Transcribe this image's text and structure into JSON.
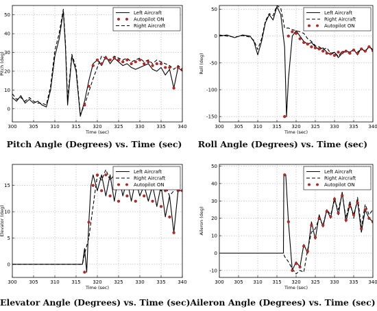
{
  "figure": {
    "captions": [
      "Pitch Angle (Degrees) vs. Time (sec)",
      "Roll Angle (Degrees) vs. Time (sec)",
      "Elevator Angle (Degrees) vs. Time (sec)",
      "Aileron Angle (Degrees) vs. Time (sec)"
    ],
    "colors": {
      "line": "#000000",
      "marker": "#cc2222",
      "marker_edge": "#7a1010",
      "grid": "#b0b0b0"
    }
  },
  "chart_data": [
    {
      "type": "line",
      "caption": "Pitch Angle (Degrees) vs. Time (sec)",
      "xlabel": "Time (sec)",
      "ylabel": "Pitch (deg)",
      "xlim": [
        300,
        340
      ],
      "ylim": [
        -7,
        55
      ],
      "xticks": [
        300,
        305,
        310,
        315,
        320,
        325,
        330,
        335,
        340
      ],
      "yticks": [
        0,
        10,
        20,
        30,
        40,
        50
      ],
      "grid": true,
      "legend_position": "top-right",
      "legend": [
        "Left Aircraft",
        "Autopilot ON",
        "Right Aircraft"
      ],
      "series": [
        {
          "name": "Left Aircraft",
          "style": "solid",
          "x": [
            300,
            301,
            302,
            303,
            304,
            305,
            306,
            307,
            308,
            309,
            310,
            311,
            312,
            312.5,
            313,
            314,
            315,
            316,
            317,
            318,
            319,
            320,
            321,
            322,
            323,
            324,
            325,
            326,
            327,
            328,
            329,
            330,
            331,
            332,
            333,
            334,
            335,
            336,
            337,
            338,
            339,
            340
          ],
          "y": [
            6,
            4,
            7,
            3,
            5,
            3,
            4,
            2,
            1,
            10,
            28,
            37,
            52,
            33,
            2,
            28,
            20,
            -4,
            4,
            15,
            24,
            26,
            23,
            28,
            24,
            27,
            25,
            23,
            24,
            22,
            21,
            22,
            23,
            24,
            21,
            20,
            22,
            18,
            21,
            11,
            22,
            20
          ]
        },
        {
          "name": "Right Aircraft",
          "style": "dashed",
          "x": [
            300,
            301,
            302,
            303,
            304,
            305,
            306,
            307,
            308,
            309,
            310,
            311,
            312,
            312.5,
            313,
            314,
            315,
            316,
            317,
            318,
            319,
            320,
            321,
            322,
            323,
            324,
            325,
            326,
            327,
            328,
            329,
            330,
            331,
            332,
            333,
            334,
            335,
            336,
            337,
            338,
            339,
            340
          ],
          "y": [
            8,
            5,
            6,
            4,
            6,
            4,
            3,
            3,
            2,
            12,
            31,
            40,
            53,
            35,
            5,
            29,
            22,
            -3,
            2,
            9,
            16,
            22,
            28,
            27,
            26,
            28,
            27,
            26,
            27,
            25,
            26,
            27,
            25,
            26,
            24,
            26,
            25,
            24,
            23,
            21,
            23,
            21
          ]
        },
        {
          "name": "Autopilot ON",
          "style": "markers",
          "x": [
            317,
            318,
            319,
            320,
            321,
            322,
            323,
            324,
            325,
            326,
            327,
            328,
            329,
            330,
            331,
            332,
            333,
            334,
            335,
            336,
            337,
            338,
            339,
            340
          ],
          "y": [
            2,
            12,
            23,
            26,
            24,
            27,
            26,
            27,
            26,
            25,
            26,
            24,
            25,
            26,
            24,
            25,
            23,
            24,
            24,
            22,
            22,
            11,
            22,
            21
          ]
        }
      ]
    },
    {
      "type": "line",
      "caption": "Roll Angle (Degrees) vs. Time (sec)",
      "xlabel": "Time (sec)",
      "ylabel": "Roll (deg)",
      "xlim": [
        300,
        340
      ],
      "ylim": [
        -160,
        57
      ],
      "xticks": [
        300,
        305,
        310,
        315,
        320,
        325,
        330,
        335,
        340
      ],
      "yticks": [
        -150,
        -100,
        -50,
        0,
        50
      ],
      "grid": true,
      "legend_position": "top-right",
      "legend": [
        "Left Aircraft",
        "Right Aircraft",
        "Autopilot ON"
      ],
      "series": [
        {
          "name": "Left Aircraft",
          "style": "solid",
          "x": [
            300,
            302,
            304,
            306,
            308,
            309,
            310,
            311,
            312,
            313,
            314,
            315,
            316,
            317,
            317.5,
            318,
            319,
            320,
            321,
            322,
            323,
            324,
            325,
            326,
            327,
            328,
            329,
            330,
            331,
            332,
            333,
            334,
            335,
            336,
            337,
            338,
            339,
            340
          ],
          "y": [
            0,
            2,
            -3,
            2,
            0,
            -10,
            -35,
            -10,
            25,
            40,
            30,
            55,
            40,
            -20,
            -150,
            -80,
            0,
            10,
            0,
            -10,
            -15,
            -12,
            -20,
            -25,
            -22,
            -30,
            -35,
            -30,
            -40,
            -32,
            -28,
            -30,
            -25,
            -35,
            -22,
            -30,
            -18,
            -28
          ]
        },
        {
          "name": "Right Aircraft",
          "style": "dashed",
          "x": [
            300,
            302,
            304,
            306,
            308,
            309,
            310,
            311,
            312,
            313,
            314,
            315,
            316,
            317,
            318,
            319,
            320,
            321,
            322,
            323,
            324,
            325,
            326,
            327,
            328,
            329,
            330,
            331,
            332,
            333,
            334,
            335,
            336,
            337,
            338,
            339,
            340
          ],
          "y": [
            2,
            0,
            -2,
            1,
            -2,
            -8,
            -25,
            -5,
            28,
            42,
            38,
            57,
            52,
            15,
            15,
            12,
            10,
            8,
            5,
            -5,
            -10,
            -18,
            -20,
            -25,
            -22,
            -32,
            -30,
            -38,
            -28,
            -30,
            -32,
            -26,
            -30,
            -24,
            -28,
            -20,
            -25
          ]
        },
        {
          "name": "Autopilot ON",
          "style": "markers",
          "x": [
            317,
            318,
            319,
            320,
            321,
            322,
            323,
            324,
            325,
            326,
            327,
            328,
            329,
            330,
            331,
            332,
            333,
            334,
            335,
            336,
            337,
            338,
            339,
            340
          ],
          "y": [
            -150,
            0,
            8,
            5,
            -5,
            -12,
            -15,
            -20,
            -22,
            -24,
            -28,
            -32,
            -33,
            -36,
            -30,
            -31,
            -28,
            -32,
            -26,
            -32,
            -24,
            -28,
            -20,
            -27
          ]
        }
      ]
    },
    {
      "type": "line",
      "caption": "Elevator Angle (Degrees) vs. Time (sec)",
      "xlabel": "Time (sec)",
      "ylabel": "Elevator (deg)",
      "xlim": [
        300,
        340
      ],
      "ylim": [
        -2.5,
        19
      ],
      "xticks": [
        300,
        305,
        310,
        315,
        320,
        325,
        330,
        335,
        340
      ],
      "yticks": [
        0,
        5,
        10,
        15
      ],
      "grid": true,
      "legend_position": "top-right",
      "legend": [
        "Left Aircraft",
        "Right Aircraft",
        "Autopilot ON"
      ],
      "series": [
        {
          "name": "Left Aircraft",
          "style": "solid",
          "x": [
            300,
            305,
            310,
            316.5,
            317,
            317.5,
            318,
            318.5,
            319,
            320,
            321,
            322,
            323,
            324,
            325,
            326,
            327,
            328,
            329,
            330,
            331,
            332,
            333,
            334,
            335,
            336,
            337,
            338,
            339,
            340
          ],
          "y": [
            0,
            0,
            0,
            0,
            3,
            -1.5,
            8,
            15,
            17,
            14,
            17,
            13,
            17,
            12,
            17,
            13,
            16,
            12,
            16,
            13,
            15,
            12,
            15,
            11,
            15,
            9,
            13,
            6,
            14,
            14
          ]
        },
        {
          "name": "Right Aircraft",
          "style": "dashed",
          "x": [
            300,
            305,
            310,
            316.5,
            317,
            318,
            319,
            320,
            321,
            322,
            323,
            324,
            325,
            326,
            327,
            328,
            329,
            330,
            331,
            332,
            333,
            334,
            335,
            336,
            337,
            338,
            339,
            340
          ],
          "y": [
            0,
            0,
            0,
            0,
            2,
            5,
            11,
            17,
            16,
            18,
            16,
            17,
            17,
            16,
            18,
            16,
            17,
            15,
            17,
            15,
            16,
            15,
            14,
            15,
            13,
            14,
            15,
            14
          ]
        },
        {
          "name": "Autopilot ON",
          "style": "markers",
          "x": [
            317,
            318,
            319,
            320,
            321,
            322,
            323,
            324,
            325,
            326,
            327,
            328,
            329,
            330,
            331,
            332,
            333,
            334,
            335,
            336,
            337,
            338,
            339,
            340
          ],
          "y": [
            -1.5,
            8,
            15,
            17,
            14,
            17,
            13,
            17,
            12,
            17,
            13,
            16,
            12,
            16,
            13,
            15,
            12,
            15,
            11,
            14,
            9,
            6,
            14,
            14
          ]
        }
      ]
    },
    {
      "type": "line",
      "caption": "Aileron Angle (Degrees) vs. Time (sec)",
      "xlabel": "Time (sec)",
      "ylabel": "Aileron (deg)",
      "xlim": [
        300,
        340
      ],
      "ylim": [
        -14,
        51
      ],
      "xticks": [
        300,
        305,
        310,
        315,
        320,
        325,
        330,
        335,
        340
      ],
      "yticks": [
        -10,
        0,
        10,
        20,
        30,
        40,
        50
      ],
      "grid": true,
      "legend_position": "top-right",
      "legend": [
        "Left Aircraft",
        "Right Aircraft",
        "Autopilot ON"
      ],
      "series": [
        {
          "name": "Left Aircraft",
          "style": "solid",
          "x": [
            300,
            305,
            310,
            316.7,
            316.8,
            317.3,
            318,
            319,
            320,
            321,
            322,
            323,
            324,
            325,
            326,
            327,
            328,
            329,
            330,
            331,
            332,
            333,
            334,
            335,
            336,
            337,
            338,
            339,
            340
          ],
          "y": [
            0,
            0,
            0,
            0,
            45,
            45,
            18,
            -10,
            -5,
            -8,
            5,
            0,
            18,
            8,
            22,
            15,
            25,
            20,
            32,
            22,
            35,
            18,
            28,
            22,
            30,
            12,
            25,
            20,
            18
          ]
        },
        {
          "name": "Right Aircraft",
          "style": "dashed",
          "x": [
            300,
            305,
            310,
            316.7,
            317,
            318,
            319,
            320,
            321,
            322,
            323,
            324,
            325,
            326,
            327,
            328,
            329,
            330,
            331,
            332,
            333,
            334,
            335,
            336,
            337,
            338,
            339,
            340
          ],
          "y": [
            0,
            0,
            0,
            0,
            -2,
            -5,
            -9,
            -12,
            -10,
            -11,
            2,
            12,
            14,
            20,
            16,
            25,
            22,
            30,
            25,
            34,
            20,
            30,
            20,
            32,
            15,
            28,
            22,
            25
          ]
        },
        {
          "name": "Autopilot ON",
          "style": "markers",
          "x": [
            317,
            318,
            319,
            320,
            321,
            322,
            323,
            324,
            325,
            326,
            327,
            328,
            329,
            330,
            331,
            332,
            333,
            334,
            335,
            336,
            337,
            338,
            339,
            340
          ],
          "y": [
            45,
            18,
            -10,
            -6,
            -8,
            4,
            1,
            16,
            9,
            20,
            16,
            24,
            21,
            31,
            23,
            33,
            19,
            27,
            22,
            29,
            14,
            25,
            20,
            18
          ]
        }
      ]
    }
  ]
}
